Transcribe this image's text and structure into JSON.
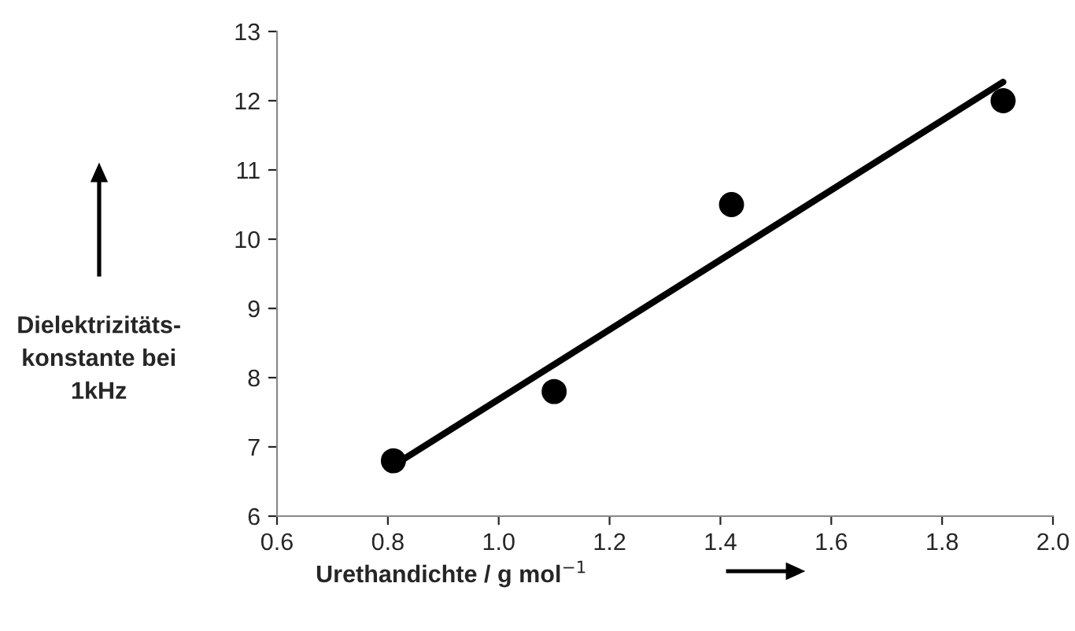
{
  "chart_data": {
    "type": "scatter",
    "xlabel": "Urethandichte / g mol$^{−1}$",
    "ylabel": "Dielektrizitäts-\nkonstante bei\n1kHz",
    "series": [
      {
        "color": "#000000",
        "marker": "circle",
        "x": [
          0.81,
          1.1,
          1.42,
          1.91
        ],
        "values": [
          6.8,
          7.8,
          10.5,
          12.0
        ]
      },
      {
        "type": "line",
        "color": "#000000",
        "marker": "none",
        "x": [
          0.81,
          1.91
        ],
        "values": [
          6.73,
          12.27
        ]
      }
    ],
    "xlim": [
      0.6,
      2.0
    ],
    "xticks": [
      {
        "value": 0.6,
        "label": "0.6"
      },
      {
        "value": 0.8,
        "label": "0.8"
      },
      {
        "value": 1.0,
        "label": "1.0"
      },
      {
        "value": 1.2,
        "label": "1.2"
      },
      {
        "value": 1.4,
        "label": "1.4"
      },
      {
        "value": 1.6,
        "label": "1.6"
      },
      {
        "value": 1.8,
        "label": "1.8"
      },
      {
        "value": 2.0,
        "label": "2.0"
      }
    ],
    "ylim": [
      6,
      13
    ],
    "yticks": [
      6,
      7,
      8,
      9,
      10,
      11,
      12,
      13
    ],
    "grid": false,
    "legend": false
  }
}
